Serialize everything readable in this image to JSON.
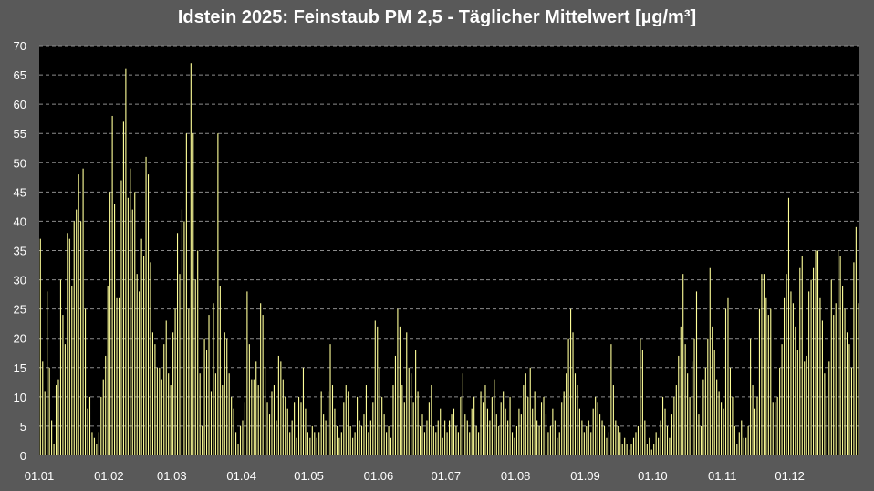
{
  "chart_data": {
    "type": "bar",
    "title": "Idstein 2025:  Feinstaub PM 2,5 - Täglicher Mittelwert  [µg/m³]",
    "xlabel": "",
    "ylabel": "",
    "ylim": [
      0,
      70
    ],
    "yticks": [
      0,
      5,
      10,
      15,
      20,
      25,
      30,
      35,
      40,
      45,
      50,
      55,
      60,
      65,
      70
    ],
    "xtick_labels": [
      "01.01",
      "01.02",
      "01.03",
      "01.04",
      "01.05",
      "01.06",
      "01.07",
      "01.08",
      "01.09",
      "01.10",
      "01.11",
      "01.12"
    ],
    "grid": true,
    "bar_color": "#ffff99",
    "background": "#000000",
    "monthly_values": {
      "01": [
        37,
        16,
        11,
        28,
        15,
        6,
        2,
        12,
        13,
        30,
        24,
        19,
        38,
        37,
        29,
        40,
        42,
        48,
        40,
        49,
        25,
        8,
        10,
        4,
        3,
        2,
        4,
        10,
        13,
        17,
        29
      ],
      "02": [
        45,
        58,
        43,
        27,
        27,
        47,
        57,
        66,
        44,
        49,
        42,
        45,
        31,
        28,
        37,
        34,
        51,
        48,
        33,
        21,
        19,
        15,
        15,
        13,
        19,
        23,
        14,
        12
      ],
      "03": [
        21,
        25,
        38,
        31,
        42,
        40,
        55,
        25,
        67,
        55,
        30,
        35,
        14,
        5,
        20,
        18,
        24,
        11,
        26,
        14,
        55,
        29,
        12,
        21,
        20,
        14,
        10,
        8,
        4,
        2,
        5
      ],
      "04": [
        6,
        9,
        28,
        19,
        13,
        13,
        16,
        12,
        26,
        24,
        15,
        9,
        7,
        11,
        12,
        6,
        17,
        16,
        13,
        10,
        8,
        4,
        6,
        9,
        3,
        10,
        9,
        15,
        8,
        4
      ],
      "05": [
        3,
        5,
        4,
        3,
        4,
        11,
        7,
        6,
        11,
        19,
        12,
        8,
        5,
        3,
        4,
        9,
        12,
        11,
        5,
        3,
        4,
        10,
        6,
        5,
        7,
        12,
        4,
        6,
        9,
        23,
        22
      ],
      "06": [
        15,
        10,
        7,
        4,
        5,
        3,
        12,
        17,
        25,
        22,
        12,
        9,
        21,
        15,
        14,
        9,
        18,
        11,
        5,
        7,
        4,
        6,
        9,
        12,
        5,
        4,
        6,
        8,
        3,
        6
      ],
      "07": [
        4,
        6,
        7,
        8,
        5,
        4,
        10,
        14,
        7,
        6,
        4,
        8,
        10,
        5,
        4,
        11,
        9,
        12,
        8,
        6,
        10,
        13,
        7,
        5,
        9,
        11,
        8,
        6,
        10,
        4,
        3
      ],
      "08": [
        5,
        8,
        7,
        12,
        14,
        10,
        15,
        8,
        11,
        6,
        5,
        9,
        10,
        7,
        4,
        5,
        8,
        6,
        3,
        4,
        9,
        11,
        14,
        20,
        25,
        21,
        14,
        12,
        8,
        6,
        4
      ],
      "09": [
        5,
        6,
        4,
        8,
        10,
        9,
        7,
        6,
        5,
        3,
        4,
        19,
        12,
        6,
        5,
        4,
        2,
        3,
        2,
        1,
        2,
        3,
        4,
        5,
        20,
        18,
        6,
        2,
        3,
        1
      ],
      "10": [
        2,
        4,
        3,
        6,
        10,
        8,
        5,
        3,
        7,
        10,
        12,
        17,
        22,
        31,
        19,
        14,
        10,
        16,
        20,
        28,
        7,
        5,
        13,
        15,
        20,
        32,
        22,
        18,
        13,
        11,
        9
      ],
      "11": [
        8,
        25,
        27,
        15,
        10,
        5,
        2,
        4,
        6,
        3,
        3,
        5,
        20,
        12,
        8,
        10,
        25,
        31,
        31,
        27,
        24,
        25,
        9,
        9,
        10,
        15,
        19,
        27,
        31,
        44
      ],
      "12": [
        28,
        26,
        22,
        18,
        32,
        34,
        16,
        17,
        28,
        30,
        32,
        35,
        35,
        27,
        23,
        14,
        10,
        16,
        30,
        24,
        26,
        35,
        34,
        29,
        25,
        21,
        19,
        15,
        33,
        39,
        26
      ]
    }
  }
}
